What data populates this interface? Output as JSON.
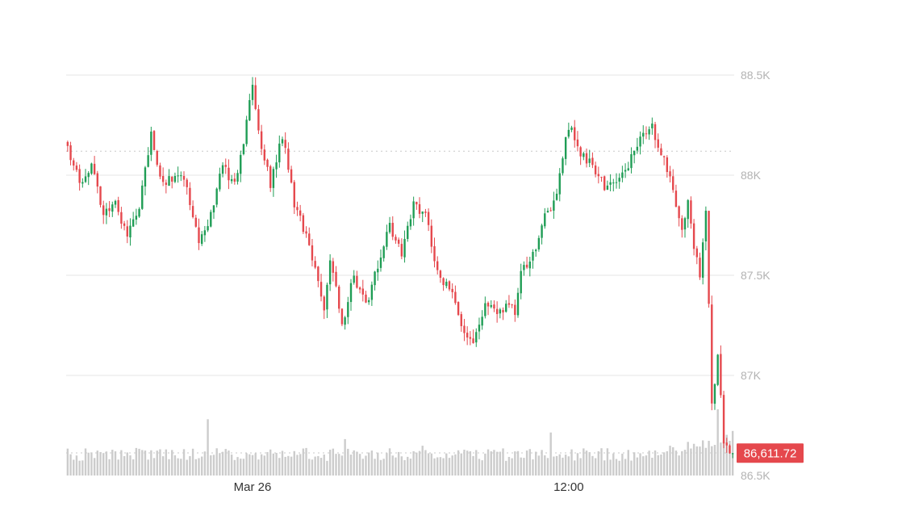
{
  "chart_data": {
    "type": "candlestick",
    "title": "",
    "xlabel": "",
    "ylabel": "",
    "y_ticks": [
      {
        "value": 88500,
        "label": "88.5K"
      },
      {
        "value": 88000,
        "label": "88K"
      },
      {
        "value": 87500,
        "label": "87.5K"
      },
      {
        "value": 87000,
        "label": "87K"
      },
      {
        "value": 86500,
        "label": "86.5K"
      }
    ],
    "x_ticks": [
      {
        "index": 62,
        "label": "Mar 26"
      },
      {
        "index": 168,
        "label": "12:00"
      }
    ],
    "ylim": [
      86500,
      88700
    ],
    "grid": true,
    "reference_line": 88120,
    "colors": {
      "up": "#1f9d55",
      "down": "#e5484d",
      "volume": "#cccccc",
      "price_label_bg": "#e5484d",
      "grid": "#e6e6e6"
    },
    "current_price": {
      "value": 86611.72,
      "label": "86,611.72"
    },
    "close_anchors": [
      [
        0,
        88150
      ],
      [
        4,
        87950
      ],
      [
        8,
        88050
      ],
      [
        12,
        87800
      ],
      [
        16,
        87850
      ],
      [
        20,
        87700
      ],
      [
        24,
        87850
      ],
      [
        28,
        88200
      ],
      [
        32,
        87950
      ],
      [
        36,
        88000
      ],
      [
        40,
        87950
      ],
      [
        44,
        87650
      ],
      [
        48,
        87800
      ],
      [
        52,
        88050
      ],
      [
        56,
        87950
      ],
      [
        60,
        88250
      ],
      [
        62,
        88450
      ],
      [
        65,
        88150
      ],
      [
        68,
        87950
      ],
      [
        72,
        88200
      ],
      [
        76,
        87850
      ],
      [
        80,
        87700
      ],
      [
        84,
        87450
      ],
      [
        86,
        87350
      ],
      [
        88,
        87600
      ],
      [
        92,
        87250
      ],
      [
        96,
        87500
      ],
      [
        100,
        87350
      ],
      [
        104,
        87550
      ],
      [
        108,
        87750
      ],
      [
        112,
        87600
      ],
      [
        116,
        87850
      ],
      [
        120,
        87800
      ],
      [
        124,
        87500
      ],
      [
        128,
        87450
      ],
      [
        132,
        87250
      ],
      [
        136,
        87150
      ],
      [
        140,
        87350
      ],
      [
        144,
        87300
      ],
      [
        148,
        87350
      ],
      [
        150,
        87300
      ],
      [
        152,
        87500
      ],
      [
        156,
        87600
      ],
      [
        160,
        87800
      ],
      [
        164,
        87900
      ],
      [
        168,
        88250
      ],
      [
        172,
        88100
      ],
      [
        176,
        88050
      ],
      [
        180,
        87950
      ],
      [
        184,
        87950
      ],
      [
        188,
        88050
      ],
      [
        192,
        88200
      ],
      [
        196,
        88250
      ],
      [
        198,
        88150
      ],
      [
        202,
        88000
      ],
      [
        204,
        87850
      ],
      [
        206,
        87700
      ],
      [
        208,
        87850
      ],
      [
        210,
        87650
      ],
      [
        212,
        87500
      ],
      [
        214,
        87850
      ],
      [
        216,
        86850
      ],
      [
        218,
        87100
      ],
      [
        220,
        86650
      ],
      [
        223,
        86612
      ]
    ],
    "volume_range": [
      0,
      1
    ],
    "volume_spikes": [
      [
        47,
        0.85
      ],
      [
        93,
        0.55
      ],
      [
        119,
        0.45
      ],
      [
        162,
        0.65
      ],
      [
        202,
        0.45
      ],
      [
        218,
        1.0
      ]
    ]
  }
}
